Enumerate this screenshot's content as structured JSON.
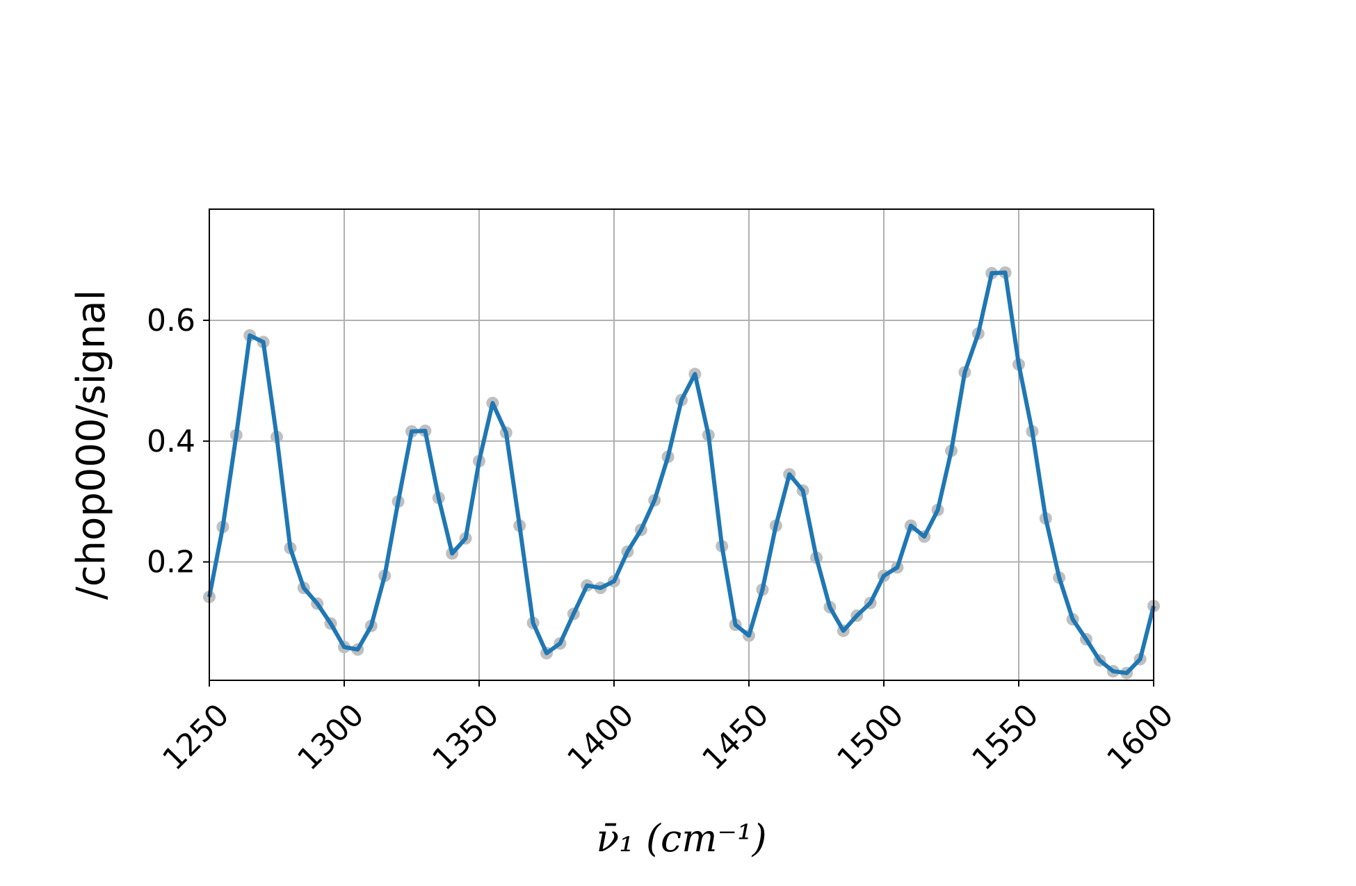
{
  "chart_data": {
    "type": "line",
    "title": "",
    "xlabel": "ν̄₁ (cm⁻¹)",
    "ylabel": "/chop000/signal",
    "xlim": [
      1250,
      1600
    ],
    "ylim": [
      0.004,
      0.784
    ],
    "grid": true,
    "xticks": [
      "1250",
      "1300",
      "1350",
      "1400",
      "1450",
      "1500",
      "1550",
      "1600"
    ],
    "yticks": [
      "0.2",
      "0.4",
      "0.6"
    ],
    "colors": {
      "line": "#1f77b4",
      "markers": "#bfbfbf",
      "grid": "#b0b0b0"
    },
    "x": [
      1250,
      1255,
      1260,
      1265,
      1270,
      1275,
      1280,
      1285,
      1290,
      1295,
      1300,
      1305,
      1310,
      1315,
      1320,
      1325,
      1330,
      1335,
      1340,
      1345,
      1350,
      1355,
      1360,
      1365,
      1370,
      1375,
      1380,
      1385,
      1390,
      1395,
      1400,
      1405,
      1410,
      1415,
      1420,
      1425,
      1430,
      1435,
      1440,
      1445,
      1450,
      1455,
      1460,
      1465,
      1470,
      1475,
      1480,
      1485,
      1490,
      1495,
      1500,
      1505,
      1510,
      1515,
      1520,
      1525,
      1530,
      1535,
      1540,
      1545,
      1550,
      1555,
      1560,
      1565,
      1570,
      1575,
      1580,
      1585,
      1590,
      1595,
      1600
    ],
    "series": [
      {
        "values": [
          0.142,
          0.258,
          0.41,
          0.575,
          0.564,
          0.407,
          0.223,
          0.157,
          0.131,
          0.098,
          0.059,
          0.055,
          0.094,
          0.177,
          0.3,
          0.416,
          0.417,
          0.306,
          0.214,
          0.239,
          0.367,
          0.463,
          0.414,
          0.26,
          0.099,
          0.049,
          0.065,
          0.114,
          0.161,
          0.157,
          0.168,
          0.217,
          0.253,
          0.302,
          0.374,
          0.468,
          0.511,
          0.41,
          0.226,
          0.096,
          0.078,
          0.154,
          0.26,
          0.345,
          0.318,
          0.207,
          0.125,
          0.086,
          0.111,
          0.132,
          0.177,
          0.191,
          0.26,
          0.242,
          0.286,
          0.384,
          0.514,
          0.578,
          0.678,
          0.679,
          0.527,
          0.416,
          0.272,
          0.174,
          0.105,
          0.072,
          0.037,
          0.019,
          0.016,
          0.039,
          0.127
        ]
      }
    ]
  }
}
